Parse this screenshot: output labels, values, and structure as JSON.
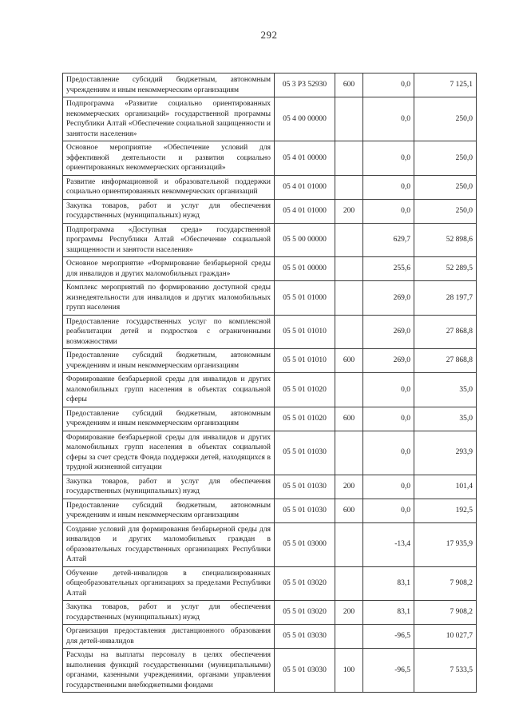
{
  "page_number": "292",
  "budget_table": {
    "rows": [
      {
        "description": "Предоставление субсидий бюджетным, автономным учреждениям и иным некоммерческим организациям",
        "code": "05 3 Р3 52930",
        "expense_type": "600",
        "amount_change": "0,0",
        "amount_total": "7 125,1"
      },
      {
        "description": "Подпрограмма «Развитие социально ориентированных некоммерческих организаций» государственной программы Республики Алтай «Обеспечение социальной защищенности и занятости населения»",
        "code": "05 4 00 00000",
        "expense_type": "",
        "amount_change": "0,0",
        "amount_total": "250,0"
      },
      {
        "description": "Основное мероприятие «Обеспечение условий для эффективной деятельности и развития социально ориентированных некоммерческих организаций»",
        "code": "05 4 01 00000",
        "expense_type": "",
        "amount_change": "0,0",
        "amount_total": "250,0"
      },
      {
        "description": "Развитие информационной и образовательной поддержки социально ориентированных некоммерческих организаций",
        "code": "05 4 01 01000",
        "expense_type": "",
        "amount_change": "0,0",
        "amount_total": "250,0"
      },
      {
        "description": "Закупка товаров, работ и услуг для обеспечения государственных (муниципальных) нужд",
        "code": "05 4 01 01000",
        "expense_type": "200",
        "amount_change": "0,0",
        "amount_total": "250,0"
      },
      {
        "description": "Подпрограмма «Доступная среда» государственной программы Республики Алтай «Обеспечение социальной защищенности и занятости населения»",
        "code": "05 5 00 00000",
        "expense_type": "",
        "amount_change": "629,7",
        "amount_total": "52 898,6"
      },
      {
        "description": "Основное мероприятие «Формирование безбарьерной среды для инвалидов и других маломобильных граждан»",
        "code": "05 5 01 00000",
        "expense_type": "",
        "amount_change": "255,6",
        "amount_total": "52 289,5"
      },
      {
        "description": "Комплекс мероприятий по формированию доступной среды жизнедеятельности для инвалидов и других маломобильных групп населения",
        "code": "05 5 01 01000",
        "expense_type": "",
        "amount_change": "269,0",
        "amount_total": "28 197,7"
      },
      {
        "description": "Предоставление государственных услуг  по комплексной реабилитации детей и подростков с ограниченными возможностями",
        "code": "05 5 01 01010",
        "expense_type": "",
        "amount_change": "269,0",
        "amount_total": "27 868,8"
      },
      {
        "description": "Предоставление субсидий бюджетным, автономным учреждениям и иным некоммерческим организациям",
        "code": "05 5 01 01010",
        "expense_type": "600",
        "amount_change": "269,0",
        "amount_total": "27 868,8"
      },
      {
        "description": "Формирование безбарьерной среды для инвалидов и других маломобильных групп населения в объектах социальной сферы",
        "code": "05 5 01 01020",
        "expense_type": "",
        "amount_change": "0,0",
        "amount_total": "35,0"
      },
      {
        "description": "Предоставление субсидий бюджетным, автономным учреждениям и иным некоммерческим организациям",
        "code": "05 5 01 01020",
        "expense_type": "600",
        "amount_change": "0,0",
        "amount_total": "35,0"
      },
      {
        "description": "Формирование безбарьерной среды для инвалидов и других маломобильных групп населения в объектах социальной сферы за счет средств Фонда поддержки детей, находящихся в трудной жизненной ситуации",
        "code": "05 5 01 01030",
        "expense_type": "",
        "amount_change": "0,0",
        "amount_total": "293,9"
      },
      {
        "description": "Закупка товаров, работ и услуг для обеспечения государственных (муниципальных) нужд",
        "code": "05 5 01 01030",
        "expense_type": "200",
        "amount_change": "0,0",
        "amount_total": "101,4"
      },
      {
        "description": "Предоставление субсидий бюджетным, автономным учреждениям и иным некоммерческим организациям",
        "code": "05 5 01 01030",
        "expense_type": "600",
        "amount_change": "0,0",
        "amount_total": "192,5"
      },
      {
        "description": "Создание условий для формирования безбарьерной среды для инвалидов и других маломобильных граждан в образовательных государственных организациях Республики Алтай",
        "code": "05 5 01 03000",
        "expense_type": "",
        "amount_change": "-13,4",
        "amount_total": "17 935,9"
      },
      {
        "description": "Обучение детей-инвалидов в специализированных общеобразовательных организациях за пределами Республики Алтай",
        "code": "05 5 01 03020",
        "expense_type": "",
        "amount_change": "83,1",
        "amount_total": "7 908,2"
      },
      {
        "description": "Закупка товаров, работ и услуг для обеспечения государственных (муниципальных) нужд",
        "code": "05 5 01 03020",
        "expense_type": "200",
        "amount_change": "83,1",
        "amount_total": "7 908,2"
      },
      {
        "description": "Организация предоставления дистанционного образования для детей-инвалидов",
        "code": "05 5 01 03030",
        "expense_type": "",
        "amount_change": "-96,5",
        "amount_total": "10 027,7"
      },
      {
        "description": "Расходы на выплаты персоналу в целях обеспечения выполнения функций государственными (муниципальными) органами, казенными учреждениями, органами управления государственными внебюджетными фондами",
        "code": "05 5 01 03030",
        "expense_type": "100",
        "amount_change": "-96,5",
        "amount_total": "7 533,5"
      }
    ]
  }
}
